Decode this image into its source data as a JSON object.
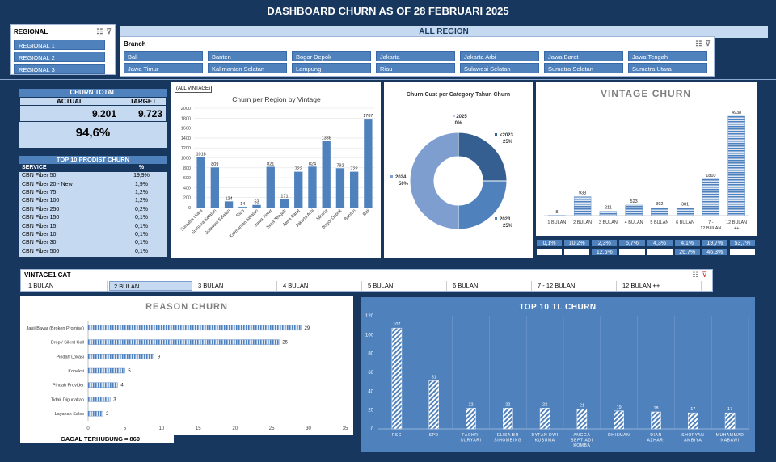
{
  "title": "DASHBOARD CHURN AS OF 28 FEBRUARI 2025",
  "region_slicer": {
    "title": "REGIONAL",
    "items": [
      "REGIONAL 1",
      "REGIONAL 2",
      "REGIONAL 3"
    ]
  },
  "all_region_label": "ALL REGION",
  "branch_slicer": {
    "title": "Branch",
    "items": [
      "Bali",
      "Banten",
      "Bogor Depok",
      "Jakarta",
      "Jakarta Arbi",
      "Jawa Barat",
      "Jawa Tengah",
      "Jawa Timur",
      "Kalimantan Selatan",
      "Lampung",
      "Riau",
      "Sulawesi Selatan",
      "Sumatra Selatan",
      "Sumatra Utara"
    ]
  },
  "churn_total": {
    "header": "CHURN TOTAL",
    "actual_label": "ACTUAL",
    "target_label": "TARGET",
    "actual": "9.201",
    "target": "9.723",
    "percent": "94,6%"
  },
  "top10_prodist": {
    "header": "TOP 10 PRODIST CHURN",
    "col_service": "SERVICE",
    "col_pct": "%",
    "rows": [
      {
        "service": "CBN Fiber 50",
        "pct": "19,9%"
      },
      {
        "service": "CBN Fiber 20 - New",
        "pct": "1,9%"
      },
      {
        "service": "CBN Fiber 75",
        "pct": "1,2%"
      },
      {
        "service": "CBN Fiber 100",
        "pct": "1,2%"
      },
      {
        "service": "CBN Fiber 250",
        "pct": "0,2%"
      },
      {
        "service": "CBN Fiber 150",
        "pct": "0,1%"
      },
      {
        "service": "CBN Fiber 15",
        "pct": "0,1%"
      },
      {
        "service": "CBN Fiber 10",
        "pct": "0,1%"
      },
      {
        "service": "CBN Fiber 30",
        "pct": "0,1%"
      },
      {
        "service": "CBN Fiber 500",
        "pct": "0,1%"
      }
    ]
  },
  "vintage_filter": "(ALL VINTAGE)",
  "vintage_slicer": {
    "title": "VINTAGE1 CAT",
    "items": [
      "1 BULAN",
      "2 BULAN",
      "3 BULAN",
      "4 BULAN",
      "5 BULAN",
      "6 BULAN",
      "7 - 12 BULAN",
      "12 BULAN ++"
    ],
    "selected": "2 BULAN"
  },
  "vintage_pcts_row1": [
    "0,1%",
    "10,2%",
    "2,3%",
    "5,7%",
    "4,3%",
    "4,1%",
    "19,7%",
    "53,7%"
  ],
  "vintage_pcts_row2": [
    "",
    "",
    "12,6%",
    "",
    "",
    "26,7%",
    "46,3%",
    ""
  ],
  "gagal_label": "GAGAL TERHUBUNG = 860",
  "colors": {
    "background": "#17375e",
    "accent": "#4f81bd",
    "light": "#c5d9f1"
  },
  "chart_data": [
    {
      "type": "bar",
      "title": "Churn per Region by Vintage",
      "categories": [
        "Sumatra Utara",
        "Sumatra Selatan",
        "Sulawesi Selatan",
        "Riau",
        "Kalimantan Selatan",
        "Jawa Timur",
        "Jawa Tengah",
        "Jawa Barat",
        "Jakarta Arbi",
        "Jakarta",
        "Bogor Depok",
        "Banten",
        "Bali"
      ],
      "values": [
        1018,
        809,
        124,
        14,
        53,
        821,
        171,
        722,
        824,
        1338,
        792,
        722,
        1787
      ],
      "ylim": [
        0,
        2000
      ],
      "yticks": [
        0,
        200,
        400,
        600,
        800,
        1000,
        1200,
        1400,
        1600,
        1800,
        2000
      ]
    },
    {
      "type": "pie",
      "title": "Churn Cust per  Category Tahun Churn",
      "slices": [
        {
          "label": "<2023",
          "pct": "25%",
          "value": 25
        },
        {
          "label": "2023",
          "pct": "25%",
          "value": 25
        },
        {
          "label": "2024",
          "pct": "50%",
          "value": 50
        },
        {
          "label": "2025",
          "pct": "0%",
          "value": 0
        }
      ]
    },
    {
      "type": "bar",
      "title": "VINTAGE CHURN",
      "categories": [
        "1 BULAN",
        "2 BULAN",
        "3 BULAN",
        "4 BULAN",
        "5 BULAN",
        "6 BULAN",
        "7 - 12 BULAN",
        "12 BULAN ++"
      ],
      "values": [
        8,
        938,
        211,
        523,
        392,
        381,
        1810,
        4938
      ]
    },
    {
      "type": "bar",
      "orientation": "horizontal",
      "title": "REASON CHURN",
      "categories": [
        "Janji Bayar (Broken Promise)",
        "Drop / Silent Call",
        "Pindah Lokasi",
        "Koneksi",
        "Pindah Provider",
        "Tidak Digunakan",
        "Layanan Sales"
      ],
      "values": [
        29,
        26,
        9,
        5,
        4,
        3,
        2
      ],
      "xlim": [
        0,
        35
      ],
      "xticks": [
        0,
        5,
        10,
        15,
        20,
        25,
        30,
        35
      ]
    },
    {
      "type": "bar",
      "title": "TOP 10 TL CHURN",
      "categories": [
        "PSC",
        "SPD",
        "FACHRI SURYARI",
        "ELISA BR SIHOMBING",
        "DYFAN DWI KUSUMA",
        "ANGGA SEPTIADI KOMBA",
        "RHISMAN",
        "DIAN AZHARI",
        "SHOFYAN AMBIYA",
        "MUHAMMAD NABAWI"
      ],
      "values": [
        107,
        51,
        22,
        22,
        22,
        21,
        19,
        18,
        17,
        17
      ],
      "ylim": [
        0,
        120
      ],
      "yticks": [
        0,
        20,
        40,
        60,
        80,
        100,
        120
      ]
    }
  ]
}
